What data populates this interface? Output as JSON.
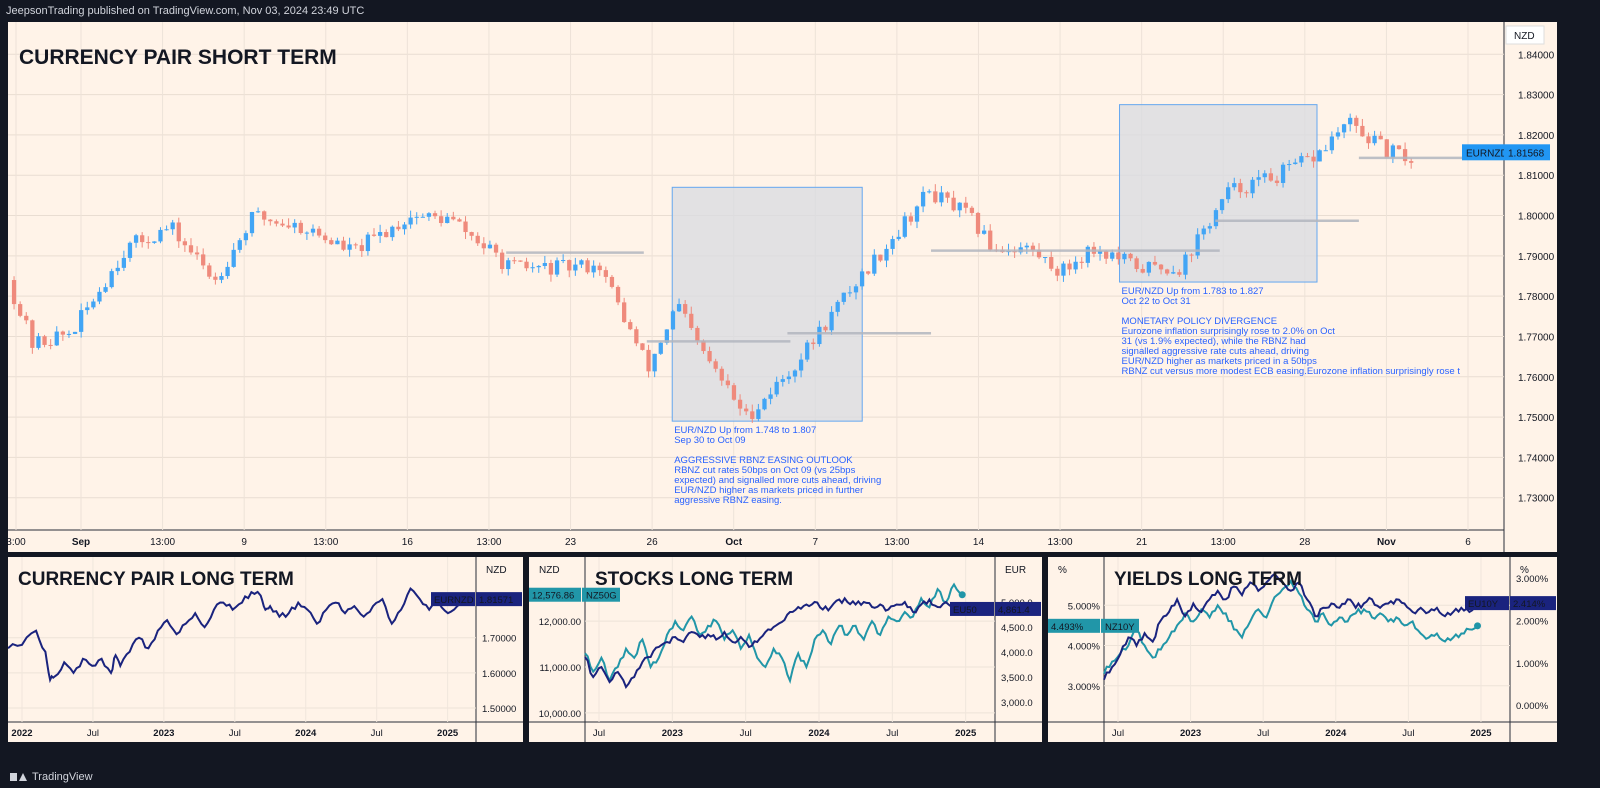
{
  "header": {
    "publisher_text": "JeepsonTrading published on TradingView.com, Nov 03, 2024 23:49 UTC"
  },
  "footer": {
    "brand": "TradingView"
  },
  "colors": {
    "background": "#fff3e8",
    "bull": "#42a5f5",
    "bear": "#ef8a7c",
    "box_fill": "#d8dbe2",
    "box_border": "#64a7f0",
    "annotation_text": "#2962ff",
    "navy": "#1a237e",
    "teal": "#2196a8",
    "panel_border": "#131722"
  },
  "chart_data": [
    {
      "id": "main",
      "type": "candlestick",
      "title": "CURRENCY PAIR SHORT TERM",
      "currency": "NZD",
      "symbol": "EURNZD",
      "last_price_label": "1.81568",
      "ylim": [
        1.722,
        1.848
      ],
      "yticks": [
        "1.84000",
        "1.83000",
        "1.82000",
        "1.81000",
        "1.80000",
        "1.79000",
        "1.78000",
        "1.77000",
        "1.76000",
        "1.75000",
        "1.74000",
        "1.73000"
      ],
      "ytick_values": [
        1.84,
        1.83,
        1.82,
        1.81,
        1.8,
        1.79,
        1.78,
        1.77,
        1.76,
        1.75,
        1.74,
        1.73
      ],
      "xticks": [
        "3:00",
        "Sep",
        "13:00",
        "9",
        "13:00",
        "16",
        "13:00",
        "23",
        "26",
        "Oct",
        "7",
        "13:00",
        "14",
        "13:00",
        "21",
        "13:00",
        "28",
        "Nov",
        "6"
      ],
      "xtick_bold": [
        "Sep",
        "Oct",
        "Nov"
      ],
      "candle_count": 230,
      "price_path": [
        [
          0,
          1.784
        ],
        [
          5,
          1.768
        ],
        [
          13,
          1.771
        ],
        [
          24,
          1.792
        ],
        [
          33,
          1.797
        ],
        [
          42,
          1.784
        ],
        [
          50,
          1.8
        ],
        [
          60,
          1.797
        ],
        [
          70,
          1.791
        ],
        [
          82,
          1.8
        ],
        [
          90,
          1.799
        ],
        [
          102,
          1.787
        ],
        [
          113,
          1.787
        ],
        [
          120,
          1.788
        ],
        [
          130,
          1.762
        ],
        [
          136,
          1.778
        ],
        [
          140,
          1.768
        ],
        [
          150,
          1.75
        ],
        [
          160,
          1.763
        ],
        [
          170,
          1.78
        ],
        [
          180,
          1.795
        ],
        [
          187,
          1.806
        ],
        [
          195,
          1.8
        ],
        [
          200,
          1.792
        ],
        [
          207,
          1.792
        ],
        [
          214,
          1.786
        ],
        [
          220,
          1.792
        ],
        [
          230,
          1.787
        ],
        [
          238,
          1.787
        ],
        [
          248,
          1.806
        ],
        [
          258,
          1.81
        ],
        [
          266,
          1.815
        ],
        [
          272,
          1.823
        ],
        [
          280,
          1.816
        ],
        [
          285,
          1.814
        ]
      ],
      "levels": [
        {
          "y": 1.7908,
          "from": 0.333,
          "to": 0.425
        },
        {
          "y": 1.7688,
          "from": 0.427,
          "to": 0.523
        },
        {
          "y": 1.7708,
          "from": 0.521,
          "to": 0.617
        },
        {
          "y": 1.7913,
          "from": 0.617,
          "to": 0.81
        },
        {
          "y": 1.7987,
          "from": 0.807,
          "to": 0.903
        },
        {
          "y": 1.8143,
          "from": 0.903,
          "to": 0.975
        }
      ],
      "boxes": [
        {
          "from": 0.444,
          "to": 0.571,
          "y_top": 1.807,
          "y_bottom": 1.749,
          "lines": [
            "EUR/NZD Up from 1.748 to 1.807",
            "Sep 30 to Oct 09",
            "",
            "AGGRESSIVE RBNZ EASING OUTLOOK",
            "RBNZ cut rates 50bps on Oct 09 (vs 25bps",
            "expected) and signalled more cuts ahead, driving",
            "EUR/NZD higher as markets priced in further",
            "aggressive RBNZ easing."
          ]
        },
        {
          "from": 0.743,
          "to": 0.875,
          "y_top": 1.8275,
          "y_bottom": 1.7835,
          "lines": [
            "EUR/NZD Up from 1.783 to 1.827",
            "Oct 22 to Oct 31",
            "",
            "MONETARY POLICY DIVERGENCE",
            "Eurozone inflation surprisingly rose to 2.0% on Oct",
            "31 (vs 1.9% expected), while the RBNZ had",
            "signalled aggressive rate cuts ahead, driving",
            "EUR/NZD higher as markets priced in a 50bps",
            "RBNZ cut versus more modest ECB easing.Eurozone inflation surprisingly rose t"
          ]
        }
      ]
    },
    {
      "id": "currency_long",
      "type": "line",
      "title": "CURRENCY PAIR LONG TERM",
      "currency": "NZD",
      "ylim": [
        1.46,
        1.93
      ],
      "yticks": [
        "1.70000",
        "1.60000",
        "1.50000"
      ],
      "ytick_values": [
        1.7,
        1.6,
        1.5
      ],
      "xticks": [
        "2022",
        "Jul",
        "2023",
        "Jul",
        "2024",
        "Jul",
        "2025"
      ],
      "xtick_bold": [
        "2022",
        "2023",
        "2024",
        "2025"
      ],
      "series": [
        {
          "name": "EURNZD",
          "last_label": "1.81571",
          "color": "#1a237e",
          "x": [
            0,
            0.03,
            0.06,
            0.08,
            0.09,
            0.1,
            0.12,
            0.14,
            0.16,
            0.18,
            0.2,
            0.22,
            0.23,
            0.24,
            0.26,
            0.28,
            0.3,
            0.32,
            0.34,
            0.36,
            0.38,
            0.4,
            0.42,
            0.44,
            0.46,
            0.48,
            0.5,
            0.52,
            0.54,
            0.55,
            0.56,
            0.58,
            0.6,
            0.62,
            0.64,
            0.66,
            0.68,
            0.7,
            0.72,
            0.74,
            0.76,
            0.78,
            0.8,
            0.82,
            0.84,
            0.86,
            0.88,
            0.9,
            0.92,
            0.94,
            0.96,
            0.98
          ],
          "values": [
            1.67,
            1.68,
            1.72,
            1.66,
            1.58,
            1.59,
            1.63,
            1.6,
            1.64,
            1.62,
            1.64,
            1.6,
            1.65,
            1.62,
            1.66,
            1.7,
            1.67,
            1.72,
            1.75,
            1.71,
            1.74,
            1.77,
            1.73,
            1.78,
            1.8,
            1.78,
            1.8,
            1.83,
            1.82,
            1.78,
            1.79,
            1.76,
            1.77,
            1.8,
            1.78,
            1.74,
            1.78,
            1.8,
            1.77,
            1.79,
            1.76,
            1.79,
            1.81,
            1.74,
            1.78,
            1.84,
            1.81,
            1.78,
            1.8,
            1.77,
            1.79,
            1.81
          ]
        }
      ]
    },
    {
      "id": "stocks_long",
      "type": "line",
      "title": "STOCKS LONG TERM",
      "left_currency": "NZD",
      "right_currency": "EUR",
      "left_ylim": [
        9800,
        13400
      ],
      "left_yticks": [
        "12,000.00",
        "11,000.00",
        "10,000.00"
      ],
      "left_ytick_values": [
        12000,
        11000,
        10000
      ],
      "right_ylim": [
        2600,
        5900
      ],
      "right_yticks": [
        "5,000.0",
        "4,500.0",
        "4,000.0",
        "3,500.0",
        "3,000.0"
      ],
      "right_ytick_values": [
        5000,
        4500,
        4000,
        3500,
        3000
      ],
      "xticks": [
        "Jul",
        "2023",
        "Jul",
        "2024",
        "Jul",
        "2025"
      ],
      "xtick_bold": [
        "2023",
        "2024",
        "2025"
      ],
      "series": [
        {
          "name": "NZ50G",
          "last_label": "12,576.86",
          "color": "#2196a8",
          "axis": "left",
          "x": [
            0,
            0.02,
            0.04,
            0.06,
            0.08,
            0.1,
            0.12,
            0.14,
            0.16,
            0.18,
            0.2,
            0.22,
            0.24,
            0.26,
            0.28,
            0.3,
            0.32,
            0.34,
            0.36,
            0.38,
            0.4,
            0.42,
            0.44,
            0.46,
            0.48,
            0.5,
            0.52,
            0.54,
            0.56,
            0.58,
            0.6,
            0.62,
            0.64,
            0.66,
            0.68,
            0.7,
            0.72,
            0.74,
            0.76,
            0.78,
            0.8,
            0.82,
            0.84,
            0.86,
            0.88,
            0.9,
            0.92
          ],
          "values": [
            11300,
            10900,
            11200,
            10700,
            11000,
            11400,
            11200,
            11600,
            11000,
            11200,
            11700,
            12000,
            11800,
            12100,
            11700,
            11900,
            12000,
            11600,
            11800,
            11400,
            11700,
            11200,
            11000,
            11400,
            11200,
            10700,
            11300,
            11000,
            11600,
            11800,
            11500,
            11900,
            11700,
            11900,
            11600,
            12000,
            11700,
            12100,
            12000,
            12200,
            12100,
            12500,
            12300,
            12700,
            12400,
            12800,
            12577
          ]
        },
        {
          "name": "EU50",
          "last_label": "4,861.4",
          "color": "#1a237e",
          "axis": "right",
          "x": [
            0,
            0.02,
            0.04,
            0.06,
            0.08,
            0.1,
            0.12,
            0.14,
            0.16,
            0.18,
            0.2,
            0.22,
            0.24,
            0.26,
            0.28,
            0.3,
            0.32,
            0.34,
            0.36,
            0.38,
            0.4,
            0.42,
            0.44,
            0.46,
            0.48,
            0.5,
            0.52,
            0.54,
            0.56,
            0.58,
            0.6,
            0.62,
            0.64,
            0.66,
            0.68,
            0.7,
            0.72,
            0.74,
            0.76,
            0.78,
            0.8,
            0.82,
            0.84,
            0.86,
            0.88,
            0.9,
            0.92
          ],
          "values": [
            3900,
            3500,
            3700,
            3400,
            3600,
            3300,
            3500,
            3800,
            3900,
            4100,
            4200,
            4300,
            4200,
            4400,
            4300,
            4350,
            4250,
            4400,
            4200,
            4300,
            4100,
            4200,
            4400,
            4500,
            4600,
            4800,
            4900,
            4950,
            5000,
            4850,
            4900,
            5050,
            5000,
            4950,
            5000,
            4900,
            4950,
            4850,
            4950,
            5000,
            4800,
            4950,
            5050,
            4900,
            5000,
            4950,
            4861
          ]
        }
      ]
    },
    {
      "id": "yields_long",
      "type": "line",
      "title": "YIELDS LONG TERM",
      "left_currency": "%",
      "right_currency": "%",
      "left_ylim": [
        2.1,
        6.2
      ],
      "left_yticks": [
        "5.000%",
        "4.000%",
        "3.000%"
      ],
      "left_ytick_values": [
        5.0,
        4.0,
        3.0
      ],
      "right_ylim": [
        -0.4,
        3.5
      ],
      "right_yticks": [
        "3.000%",
        "2.000%",
        "1.000%",
        "0.000%"
      ],
      "right_ytick_values": [
        3.0,
        2.0,
        1.0,
        0.0
      ],
      "xticks": [
        "Jul",
        "2023",
        "Jul",
        "2024",
        "Jul",
        "2025"
      ],
      "xtick_bold": [
        "2023",
        "2024",
        "2025"
      ],
      "series": [
        {
          "name": "NZ10Y",
          "last_label": "4.493%",
          "color": "#2196a8",
          "axis": "left",
          "x": [
            0,
            0.02,
            0.04,
            0.06,
            0.08,
            0.1,
            0.12,
            0.14,
            0.16,
            0.18,
            0.2,
            0.22,
            0.24,
            0.26,
            0.28,
            0.3,
            0.32,
            0.34,
            0.36,
            0.38,
            0.4,
            0.42,
            0.44,
            0.46,
            0.48,
            0.5,
            0.52,
            0.54,
            0.56,
            0.58,
            0.6,
            0.62,
            0.64,
            0.66,
            0.68,
            0.7,
            0.72,
            0.74,
            0.76,
            0.78,
            0.8,
            0.82,
            0.84,
            0.86,
            0.88,
            0.9,
            0.92
          ],
          "values": [
            3.3,
            3.6,
            3.8,
            4.0,
            4.4,
            4.0,
            3.7,
            3.9,
            4.2,
            4.5,
            4.8,
            4.6,
            4.9,
            4.7,
            5.0,
            4.8,
            4.4,
            4.2,
            4.6,
            4.9,
            4.7,
            5.2,
            5.4,
            5.6,
            5.3,
            4.9,
            4.6,
            4.8,
            4.5,
            4.7,
            4.6,
            4.8,
            4.9,
            4.7,
            4.8,
            4.6,
            4.7,
            4.5,
            4.6,
            4.3,
            4.2,
            4.3,
            4.1,
            4.2,
            4.3,
            4.4,
            4.49
          ]
        },
        {
          "name": "EU10Y",
          "last_label": "2.414%",
          "color": "#1a237e",
          "axis": "right",
          "x": [
            0,
            0.02,
            0.04,
            0.06,
            0.08,
            0.1,
            0.12,
            0.14,
            0.16,
            0.18,
            0.2,
            0.22,
            0.24,
            0.26,
            0.28,
            0.3,
            0.32,
            0.34,
            0.36,
            0.38,
            0.4,
            0.42,
            0.44,
            0.46,
            0.48,
            0.5,
            0.52,
            0.54,
            0.56,
            0.58,
            0.6,
            0.62,
            0.64,
            0.66,
            0.68,
            0.7,
            0.72,
            0.74,
            0.76,
            0.78,
            0.8,
            0.82,
            0.84,
            0.86,
            0.88,
            0.9,
            0.92
          ],
          "values": [
            0.6,
            0.9,
            1.2,
            1.6,
            1.4,
            1.7,
            1.5,
            2.0,
            2.2,
            2.5,
            2.1,
            2.4,
            2.2,
            2.5,
            2.7,
            2.5,
            2.8,
            2.6,
            2.9,
            2.7,
            2.9,
            3.1,
            2.9,
            2.7,
            2.9,
            2.5,
            2.1,
            2.3,
            2.4,
            2.3,
            2.5,
            2.3,
            2.4,
            2.5,
            2.3,
            2.4,
            2.5,
            2.4,
            2.2,
            2.3,
            2.2,
            2.3,
            2.1,
            2.2,
            2.3,
            2.2,
            2.41
          ]
        }
      ]
    }
  ]
}
